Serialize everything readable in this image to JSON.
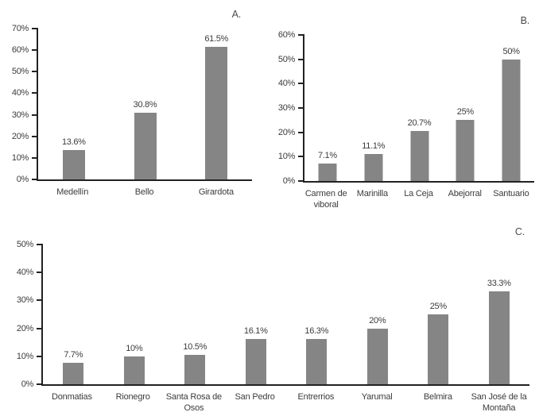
{
  "page": {
    "background": "#ffffff"
  },
  "chart_data": [
    {
      "type": "bar",
      "title": "A.",
      "categories": [
        "Medellín",
        "Bello",
        "Girardota"
      ],
      "values": [
        13.6,
        30.8,
        61.5
      ],
      "value_labels": [
        "13.6%",
        "30.8%",
        "61.5%"
      ],
      "y_ticks": [
        "0%",
        "10%",
        "20%",
        "30%",
        "40%",
        "50%",
        "60%",
        "70%"
      ],
      "ylim": [
        0,
        70
      ],
      "xlabel": "",
      "ylabel": "",
      "grid": false,
      "legend": "none",
      "bar_color": "#858585",
      "axis_color": "#222222"
    },
    {
      "type": "bar",
      "title": "B.",
      "categories": [
        "Carmen de viboral",
        "Marinilla",
        "La Ceja",
        "Abejorral",
        "Santuario"
      ],
      "values": [
        7.1,
        11.1,
        20.7,
        25,
        50
      ],
      "value_labels": [
        "7.1%",
        "11.1%",
        "20.7%",
        "25%",
        "50%"
      ],
      "y_ticks": [
        "0%",
        "10%",
        "20%",
        "30%",
        "40%",
        "50%",
        "60%"
      ],
      "ylim": [
        0,
        60
      ],
      "xlabel": "",
      "ylabel": "",
      "grid": false,
      "legend": "none",
      "bar_color": "#858585",
      "axis_color": "#222222"
    },
    {
      "type": "bar",
      "title": "C.",
      "categories": [
        "Donmatias",
        "Rionegro",
        "Santa Rosa de Osos",
        "San Pedro",
        "Entrerrios",
        "Yarumal",
        "Belmira",
        "San José de la Montaña"
      ],
      "values": [
        7.7,
        10,
        10.5,
        16.1,
        16.3,
        20,
        25,
        33.3
      ],
      "value_labels": [
        "7.7%",
        "10%",
        "10.5%",
        "16.1%",
        "16.3%",
        "20%",
        "25%",
        "33.3%"
      ],
      "y_ticks": [
        "0%",
        "10%",
        "20%",
        "30%",
        "40%",
        "50%"
      ],
      "ylim": [
        0,
        50
      ],
      "xlabel": "",
      "ylabel": "",
      "grid": false,
      "legend": "none",
      "bar_color": "#858585",
      "axis_color": "#222222"
    }
  ]
}
